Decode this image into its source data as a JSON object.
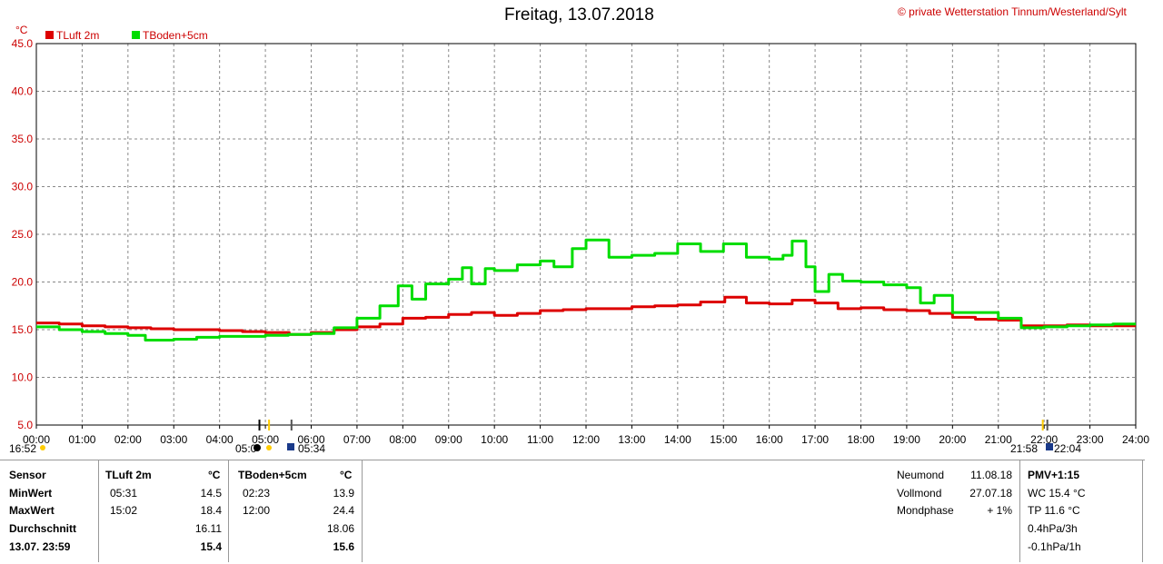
{
  "header": {
    "title": "Freitag, 13.07.2018",
    "copyright": "© private Wetterstation Tinnum/Westerland/Sylt",
    "unit": "°C"
  },
  "legend": {
    "items": [
      {
        "label": "TLuft 2m",
        "color": "#dd0000"
      },
      {
        "label": "TBoden+5cm",
        "color": "#00dd00"
      }
    ]
  },
  "chart_data": {
    "type": "line",
    "title": "Freitag, 13.07.2018",
    "ylabel": "°C",
    "ylim": [
      5.0,
      45.0
    ],
    "xlim": [
      0,
      24
    ],
    "yticks": [
      "5.0",
      "10.0",
      "15.0",
      "20.0",
      "25.0",
      "30.0",
      "35.0",
      "40.0",
      "45.0"
    ],
    "xticks": [
      "00:00",
      "01:00",
      "02:00",
      "03:00",
      "04:00",
      "05:00",
      "06:00",
      "07:00",
      "08:00",
      "09:00",
      "10:00",
      "11:00",
      "12:00",
      "13:00",
      "14:00",
      "15:00",
      "16:00",
      "17:00",
      "18:00",
      "19:00",
      "20:00",
      "21:00",
      "22:00",
      "23:00",
      "24:00"
    ],
    "grid": true,
    "legend_position": "top-left",
    "x_unit": "hours",
    "series": [
      {
        "name": "TLuft 2m",
        "color": "#dd0000",
        "x": [
          0,
          0.5,
          1,
          1.5,
          2,
          2.5,
          3,
          3.5,
          4,
          4.5,
          5,
          5.52,
          6,
          6.5,
          7,
          7.5,
          8,
          8.5,
          9,
          9.5,
          10,
          10.5,
          11,
          11.5,
          12,
          12.5,
          13,
          13.5,
          14,
          14.5,
          15.03,
          15.5,
          16,
          16.5,
          17,
          17.5,
          18,
          18.5,
          19,
          19.5,
          20,
          20.5,
          21,
          21.5,
          22,
          22.5,
          23,
          23.5,
          24
        ],
        "y": [
          15.7,
          15.6,
          15.4,
          15.3,
          15.2,
          15.1,
          15.0,
          15.0,
          14.9,
          14.8,
          14.7,
          14.5,
          14.7,
          15.0,
          15.3,
          15.6,
          16.2,
          16.3,
          16.6,
          16.8,
          16.5,
          16.7,
          17.0,
          17.1,
          17.2,
          17.2,
          17.4,
          17.5,
          17.6,
          17.9,
          18.4,
          17.8,
          17.7,
          18.1,
          17.8,
          17.2,
          17.3,
          17.1,
          17.0,
          16.7,
          16.3,
          16.1,
          16.0,
          15.4,
          15.4,
          15.5,
          15.4,
          15.4,
          15.4
        ]
      },
      {
        "name": "TBoden+5cm",
        "color": "#00dd00",
        "x": [
          0,
          0.5,
          1,
          1.5,
          2,
          2.38,
          3,
          3.5,
          4,
          4.5,
          5,
          5.5,
          6,
          6.5,
          7,
          7.5,
          7.9,
          8.2,
          8.5,
          9,
          9.3,
          9.5,
          9.8,
          10,
          10.5,
          11,
          11.3,
          11.7,
          12,
          12.5,
          13,
          13.5,
          14,
          14.5,
          15,
          15.5,
          16,
          16.3,
          16.5,
          16.8,
          17,
          17.3,
          17.6,
          18,
          18.5,
          19,
          19.3,
          19.6,
          20,
          20.5,
          21,
          21.5,
          22,
          22.5,
          23,
          23.5,
          24
        ],
        "y": [
          15.3,
          15.0,
          14.8,
          14.6,
          14.4,
          13.9,
          14.0,
          14.2,
          14.3,
          14.3,
          14.4,
          14.5,
          14.6,
          15.2,
          16.2,
          17.5,
          19.6,
          18.2,
          19.8,
          20.3,
          21.5,
          19.8,
          21.4,
          21.2,
          21.8,
          22.2,
          21.6,
          23.5,
          24.4,
          22.6,
          22.8,
          23.0,
          24.0,
          23.2,
          24.0,
          22.6,
          22.4,
          22.8,
          24.3,
          21.6,
          19.0,
          20.8,
          20.1,
          20.0,
          19.7,
          19.4,
          17.8,
          18.6,
          16.8,
          16.8,
          16.2,
          15.2,
          15.3,
          15.4,
          15.5,
          15.6,
          15.6
        ]
      }
    ],
    "annotations": [
      "16:52",
      "05:0",
      "05:34",
      "21:58",
      "22:04"
    ]
  },
  "stats": {
    "labels": {
      "sensor": "Sensor",
      "min": "MinWert",
      "max": "MaxWert",
      "avg": "Durchschnitt",
      "current": "13.07. 23:59"
    },
    "tluft": {
      "name": "TLuft 2m",
      "unit": "°C",
      "min_time": "05:31",
      "min_value": "14.5",
      "max_time": "15:02",
      "max_value": "18.4",
      "avg": "16.11",
      "current": "15.4"
    },
    "tboden": {
      "name": "TBoden+5cm",
      "unit": "°C",
      "min_time": "02:23",
      "min_value": "13.9",
      "max_time": "12:00",
      "max_value": "24.4",
      "avg": "18.06",
      "current": "15.6"
    }
  },
  "moon": {
    "neumond_label": "Neumond",
    "neumond_value": "11.08.18",
    "vollmond_label": "Vollmond",
    "vollmond_value": "27.07.18",
    "phase_label": "Mondphase",
    "phase_value": "+ 1%"
  },
  "pmv": {
    "title": "PMV+1:15",
    "wc": "WC 15.4 °C",
    "tp": "TP 11.6 °C",
    "p3h": "0.4hPa/3h",
    "p1h": "-0.1hPa/1h"
  }
}
